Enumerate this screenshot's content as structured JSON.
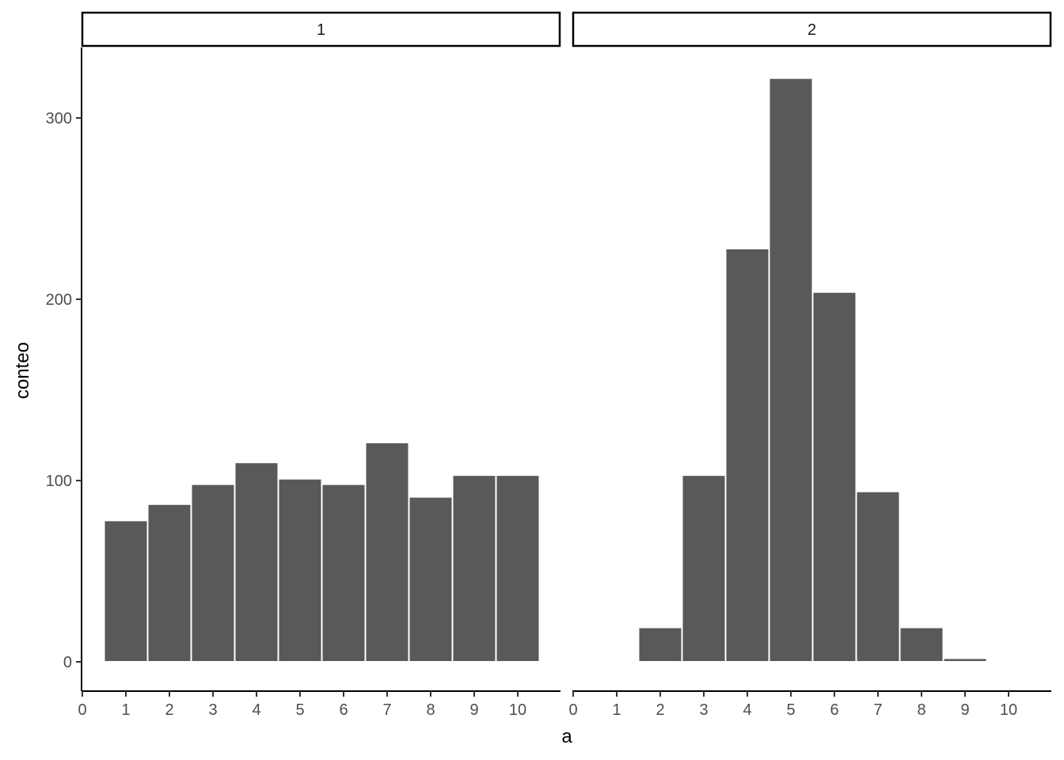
{
  "chart_data": {
    "type": "bar",
    "xlabel": "a",
    "ylabel": "conteo",
    "x_ticks": [
      "0",
      "1",
      "2",
      "3",
      "4",
      "5",
      "6",
      "7",
      "8",
      "9",
      "10"
    ],
    "y_ticks": [
      "0",
      "100",
      "200",
      "300"
    ],
    "ylim": [
      0,
      340
    ],
    "xlim": [
      0,
      11
    ],
    "panels": [
      {
        "label": "1",
        "bins": [
          1,
          2,
          3,
          4,
          5,
          6,
          7,
          8,
          9,
          10
        ],
        "values": [
          78,
          87,
          98,
          110,
          101,
          98,
          121,
          91,
          103,
          103
        ]
      },
      {
        "label": "2",
        "bins": [
          2,
          3,
          4,
          5,
          6,
          7,
          8,
          9
        ],
        "values": [
          19,
          103,
          228,
          322,
          204,
          94,
          19,
          2
        ]
      }
    ],
    "bar_color": "#595959",
    "grid": false
  }
}
